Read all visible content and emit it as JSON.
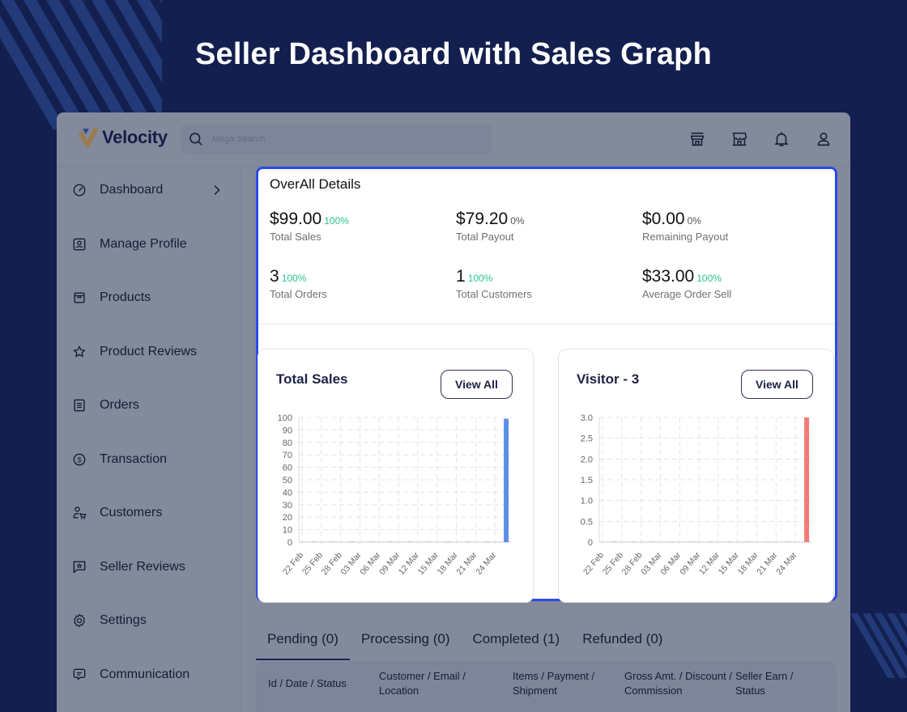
{
  "banner": {
    "title": "Seller Dashboard with Sales Graph"
  },
  "colors": {
    "background": "#13204f",
    "accent": "#2a4bea",
    "positive": "#27c48b",
    "sales_bar": "#5b8ee6",
    "visitor_bar": "#f47a76"
  },
  "topbar": {
    "logo_text": "Velocity",
    "search_placeholder": "Mega Search",
    "icons": [
      "store-front-icon",
      "shop-icon",
      "bell-icon",
      "user-icon"
    ]
  },
  "sidebar": {
    "items": [
      {
        "label": "Dashboard",
        "icon": "gauge-icon",
        "has_chevron": true
      },
      {
        "label": "Manage Profile",
        "icon": "profile-card-icon"
      },
      {
        "label": "Products",
        "icon": "box-icon"
      },
      {
        "label": "Product Reviews",
        "icon": "star-icon"
      },
      {
        "label": "Orders",
        "icon": "list-doc-icon"
      },
      {
        "label": "Transaction",
        "icon": "dollar-circle-icon"
      },
      {
        "label": "Customers",
        "icon": "customer-cart-icon"
      },
      {
        "label": "Seller Reviews",
        "icon": "review-bubble-icon"
      },
      {
        "label": "Settings",
        "icon": "gear-icon"
      },
      {
        "label": "Communication",
        "icon": "chat-icon"
      }
    ]
  },
  "overall": {
    "title": "OverAll Details",
    "stats": [
      {
        "value": "$99.00",
        "pct": "100%",
        "label": "Total Sales"
      },
      {
        "value": "$79.20",
        "pct": "0%",
        "label": "Total Payout"
      },
      {
        "value": "$0.00",
        "pct": "0%",
        "label": "Remaining Payout"
      },
      {
        "value": "3",
        "pct": "100%",
        "label": "Total Orders"
      },
      {
        "value": "1",
        "pct": "100%",
        "label": "Total Customers"
      },
      {
        "value": "$33.00",
        "pct": "100%",
        "label": "Average Order Sell"
      }
    ]
  },
  "cards": {
    "sales": {
      "title": "Total Sales",
      "button": "View All"
    },
    "visitor": {
      "title": "Visitor - 3",
      "button": "View All"
    }
  },
  "chart_data": [
    {
      "type": "bar",
      "title": "Total Sales",
      "categories": [
        "22 Feb",
        "25 Feb",
        "28 Feb",
        "03 Mar",
        "06 Mar",
        "09 Mar",
        "12 Mar",
        "15 Mar",
        "18 Mar",
        "21 Mar",
        "24 Mar"
      ],
      "values": [
        0,
        0,
        0,
        0,
        0,
        0,
        0,
        0,
        0,
        0,
        99
      ],
      "yticks": [
        "0",
        "10",
        "20",
        "30",
        "40",
        "50",
        "60",
        "70",
        "80",
        "90",
        "100"
      ],
      "ylim": [
        0,
        100
      ],
      "grid": true,
      "color": "#5b8ee6"
    },
    {
      "type": "bar",
      "title": "Visitor - 3",
      "categories": [
        "22 Feb",
        "25 Feb",
        "28 Feb",
        "03 Mar",
        "06 Mar",
        "09 Mar",
        "12 Mar",
        "15 Mar",
        "18 Mar",
        "21 Mar",
        "24 Mar"
      ],
      "values": [
        0,
        0,
        0,
        0,
        0,
        0,
        0,
        0,
        0,
        0,
        3
      ],
      "yticks": [
        "0",
        "0.5",
        "1.0",
        "1.5",
        "2.0",
        "2.5",
        "3.0"
      ],
      "ylim": [
        0,
        3
      ],
      "grid": true,
      "color": "#f47a76"
    }
  ],
  "orders": {
    "tabs": [
      "Pending (0)",
      "Processing (0)",
      "Completed (1)",
      "Refunded (0)"
    ],
    "active_tab": 0,
    "columns": [
      "Id / Date / Status",
      "Customer / Email / Location",
      "Items / Payment / Shipment",
      "Gross Amt. / Discount / Commission",
      "Seller Earn / Status"
    ]
  }
}
